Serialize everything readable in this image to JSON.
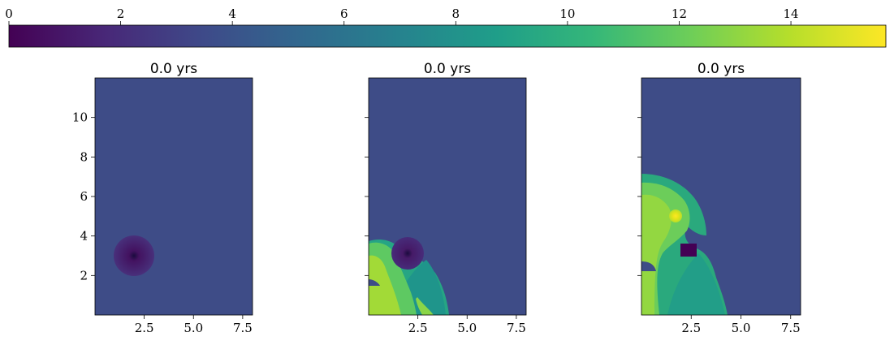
{
  "chart_data": {
    "type": "heatmap",
    "colormap": "viridis",
    "colorbar": {
      "location": "top",
      "vmin": 0,
      "vmax": 15.7,
      "ticks": [
        0,
        2,
        4,
        6,
        8,
        10,
        12,
        14
      ],
      "tick_labels": [
        "0",
        "2",
        "4",
        "6",
        "8",
        "10",
        "12",
        "14"
      ]
    },
    "background_value": 4.2,
    "panels": [
      {
        "title": "0.0 yrs",
        "xlim": [
          0,
          8
        ],
        "ylim": [
          0,
          12
        ],
        "xticks": [
          2.5,
          5.0,
          7.5
        ],
        "xtick_labels": [
          "2.5",
          "5.0",
          "7.5"
        ],
        "yticks": [
          2,
          4,
          6,
          8,
          10
        ],
        "ytick_labels": [
          "2",
          "4",
          "6",
          "8",
          "10"
        ],
        "features": [
          {
            "kind": "dark-disk",
            "center": [
              2.0,
              3.0
            ],
            "radius": 1.0,
            "edge_value": 3.0,
            "center_value": 0.5
          }
        ]
      },
      {
        "title": "0.0 yrs",
        "xlim": [
          0,
          8
        ],
        "ylim": [
          0,
          12
        ],
        "xticks": [
          2.5,
          5.0,
          7.5
        ],
        "xtick_labels": [
          "2.5",
          "5.0",
          "7.5"
        ],
        "yticks": [
          2,
          4,
          6,
          8,
          10
        ],
        "ytick_labels": [
          "",
          "",
          "",
          "",
          ""
        ],
        "features": [
          {
            "kind": "plume",
            "peak_value": 12.5,
            "typical_value": 9.5,
            "extent_x": [
              0,
              4.1
            ],
            "extent_y": [
              0,
              3.9
            ]
          },
          {
            "kind": "dark-disk",
            "center": [
              2.0,
              3.0
            ],
            "radius": 0.8,
            "edge_value": 3.0,
            "center_value": 0.5
          }
        ]
      },
      {
        "title": "0.0 yrs",
        "xlim": [
          0,
          8
        ],
        "ylim": [
          0,
          12
        ],
        "xticks": [
          2.5,
          5.0,
          7.5
        ],
        "xtick_labels": [
          "2.5",
          "5.0",
          "7.5"
        ],
        "yticks": [
          2,
          4,
          6,
          8,
          10
        ],
        "ytick_labels": [
          "",
          "",
          "",
          "",
          ""
        ],
        "features": [
          {
            "kind": "plume",
            "peak_value": 15.5,
            "typical_value": 10.5,
            "extent_x": [
              0,
              5.6
            ],
            "extent_y": [
              0,
              7.1
            ]
          },
          {
            "kind": "dark-block",
            "center": [
              2.2,
              3.2
            ],
            "size": [
              0.8,
              0.6
            ],
            "value": 1.5
          }
        ]
      }
    ]
  }
}
